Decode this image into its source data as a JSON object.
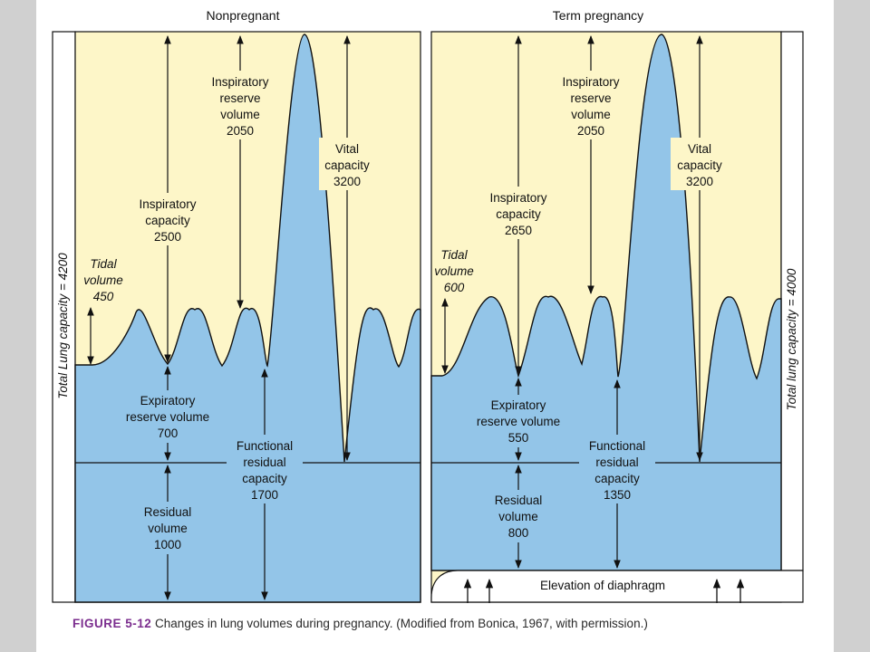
{
  "figure": {
    "left_panel": {
      "title": "Nonpregnant",
      "total_label": "Total Lung capacity = 4200",
      "tidal_volume": [
        "Tidal",
        "volume",
        "450"
      ],
      "inspiratory_reserve": [
        "Inspiratory",
        "reserve",
        "volume",
        "2050"
      ],
      "inspiratory_capacity": [
        "Inspiratory",
        "capacity",
        "2500"
      ],
      "vital_capacity": [
        "Vital",
        "capacity",
        "3200"
      ],
      "expiratory_reserve": [
        "Expiratory",
        "reserve volume",
        "700"
      ],
      "functional_residual": [
        "Functional",
        "residual",
        "capacity",
        "1700"
      ],
      "residual_volume": [
        "Residual",
        "volume",
        "1000"
      ]
    },
    "right_panel": {
      "title": "Term pregnancy",
      "total_label": "Total lung capacity = 4000",
      "tidal_volume": [
        "Tidal",
        "volume",
        "600"
      ],
      "inspiratory_reserve": [
        "Inspiratory",
        "reserve",
        "volume",
        "2050"
      ],
      "inspiratory_capacity": [
        "Inspiratory",
        "capacity",
        "2650"
      ],
      "vital_capacity": [
        "Vital",
        "capacity",
        "3200"
      ],
      "expiratory_reserve": [
        "Expiratory",
        "reserve volume",
        "550"
      ],
      "functional_residual": [
        "Functional",
        "residual",
        "capacity",
        "1350"
      ],
      "residual_volume": [
        "Residual",
        "volume",
        "800"
      ],
      "diaphragm": "Elevation of diaphragm"
    },
    "colors": {
      "background": "#fdf6c8",
      "fill": "#93c5e8",
      "line": "#111111"
    }
  },
  "caption": {
    "label": "FIGURE 5-12",
    "text": "Changes in lung volumes during pregnancy. (Modified from Bonica, 1967, with permission.)"
  }
}
